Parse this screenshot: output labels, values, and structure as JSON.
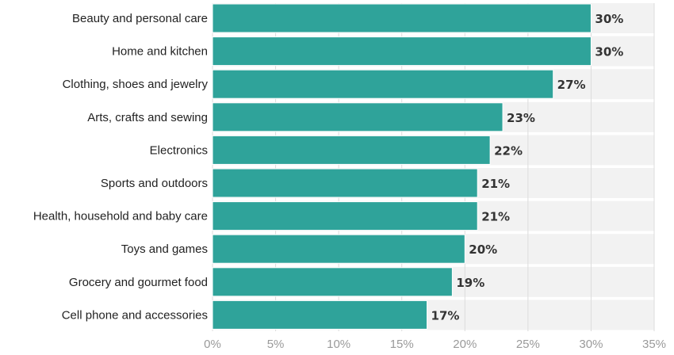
{
  "chart_data": {
    "type": "bar",
    "orientation": "horizontal",
    "categories": [
      "Beauty and personal care",
      "Home and kitchen",
      "Clothing, shoes and jewelry",
      "Arts, crafts and sewing",
      "Electronics",
      "Sports and outdoors",
      "Health, household and baby care",
      "Toys and games",
      "Grocery and gourmet food",
      "Cell phone and accessories"
    ],
    "values": [
      30,
      30,
      27,
      23,
      22,
      21,
      21,
      20,
      19,
      17
    ],
    "value_labels": [
      "30%",
      "30%",
      "27%",
      "23%",
      "22%",
      "21%",
      "21%",
      "20%",
      "19%",
      "17%"
    ],
    "x_ticks": [
      0,
      5,
      10,
      15,
      20,
      25,
      30,
      35
    ],
    "x_tick_labels": [
      "0%",
      "5%",
      "10%",
      "15%",
      "20%",
      "25%",
      "30%",
      "35%"
    ],
    "xlim": [
      0,
      35
    ],
    "title": "",
    "xlabel": "",
    "ylabel": "",
    "grid": true,
    "colors": {
      "bar": "#2fa39a",
      "bar_stroke": "#ffffff",
      "band": "#f2f2f2",
      "grid": "#dcdcdc"
    }
  }
}
